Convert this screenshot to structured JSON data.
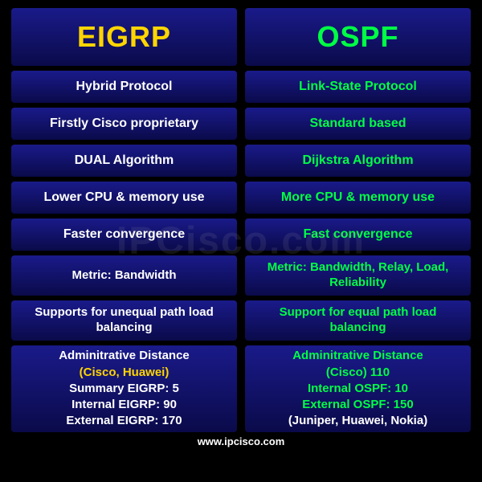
{
  "header": {
    "left": "EIGRP",
    "right": "OSPF"
  },
  "rows": [
    {
      "left": "Hybrid Protocol",
      "right": "Link-State Protocol",
      "h": "normal"
    },
    {
      "left": "Firstly Cisco proprietary",
      "right": "Standard based",
      "h": "normal"
    },
    {
      "left": "DUAL Algorithm",
      "right": "Dijkstra Algorithm",
      "h": "normal"
    },
    {
      "left": "Lower CPU & memory use",
      "right": "More CPU & memory use",
      "h": "normal"
    },
    {
      "left": "Faster convergence",
      "right": "Fast convergence",
      "h": "normal"
    },
    {
      "left": "Metric: Bandwidth",
      "right": "Metric: Bandwidth, Relay, Load, Reliability",
      "h": "tall"
    },
    {
      "left": "Supports for  unequal path load balancing",
      "right": "Support for equal path load balancing",
      "h": "tall"
    }
  ],
  "admin": {
    "left": {
      "title": "Adminitrative Distance",
      "sub": "(Cisco, Huawei)",
      "l1": "Summary EIGRP: 5",
      "l2": "Internal EIGRP: 90",
      "l3": "External EIGRP: 170"
    },
    "right": {
      "title": "Adminitrative Distance",
      "sub": "(Cisco) 110",
      "l1": "Internal OSPF: 10",
      "l2": "External OSPF: 150",
      "l3": "(Juniper, Huawei, Nokia)"
    }
  },
  "footer": "www.ipcisco.com",
  "watermark": "IPCisco.com",
  "colors": {
    "yellow": "#ffd500",
    "green": "#00ff44",
    "white": "#ffffff",
    "cellGradTop": "#1a1a8a",
    "cellGradBottom": "#0a0a4a",
    "bg": "#000000"
  }
}
